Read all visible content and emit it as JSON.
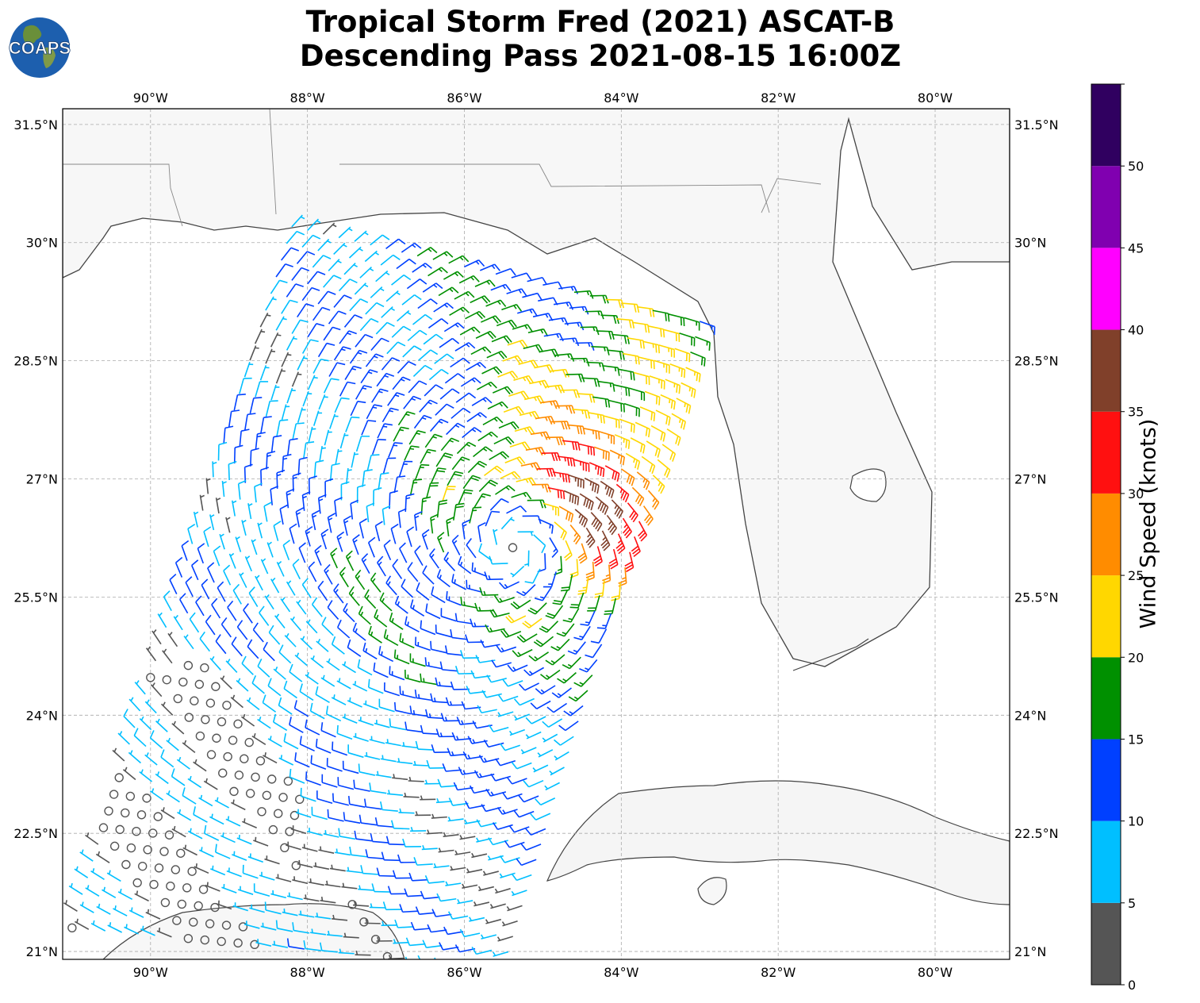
{
  "title": {
    "line1": "Tropical Storm Fred (2021) ASCAT-B",
    "line2": "Descending Pass 2021-08-15 16:00Z"
  },
  "logo": {
    "text": "COAPS",
    "icon": "globe-logo-icon"
  },
  "map": {
    "projection": "PlateCarree",
    "lon_range": [
      -91.12,
      -79.05
    ],
    "lat_range": [
      20.9,
      31.7
    ],
    "lon_ticks": [
      "90°W",
      "88°W",
      "86°W",
      "84°W",
      "82°W",
      "80°W"
    ],
    "lon_tick_values": [
      -90,
      -88,
      -86,
      -84,
      -82,
      -80
    ],
    "lat_ticks": [
      "31.5°N",
      "30°N",
      "28.5°N",
      "27°N",
      "25.5°N",
      "24°N",
      "22.5°N",
      "21°N"
    ],
    "lat_tick_values": [
      31.5,
      30,
      28.5,
      27,
      25.5,
      24,
      22.5,
      21
    ],
    "gridlines": true,
    "storm_center": {
      "lon": -85.38,
      "lat": 26.15
    },
    "swath_corners": [
      [
        -88.2,
        30.2
      ],
      [
        -83.0,
        29.0
      ],
      [
        -85.5,
        20.8
      ],
      [
        -91.0,
        21.3
      ]
    ]
  },
  "colorbar": {
    "label": "Wind Speed (knots)",
    "tick_labels": [
      "0",
      "5",
      "10",
      "15",
      "20",
      "25",
      "30",
      "35",
      "40",
      "45",
      "50"
    ],
    "bounds": [
      0,
      5,
      10,
      15,
      20,
      25,
      30,
      35,
      40,
      45,
      50,
      55
    ],
    "colors": [
      "#555555",
      "#00bfff",
      "#0040ff",
      "#009000",
      "#ffd700",
      "#ff8c00",
      "#ff1010",
      "#80402a",
      "#ff00ff",
      "#8000b0",
      "#300060"
    ]
  }
}
